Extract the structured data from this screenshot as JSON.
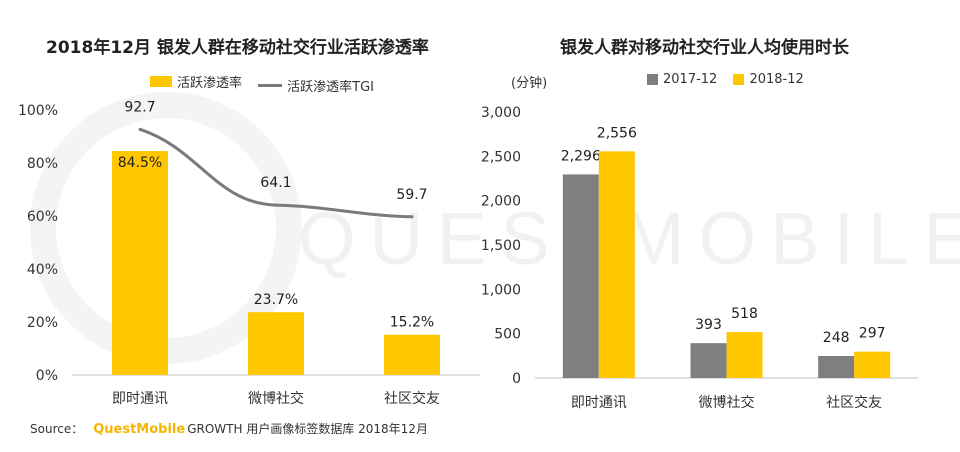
{
  "chart_data": [
    {
      "type": "bar",
      "title": "2018年12月 银发人群在移动社交行业活跃渗透率",
      "categories": [
        "即时通讯",
        "微博社交",
        "社区交友"
      ],
      "ylim": [
        0,
        100
      ],
      "yticks": [
        "0%",
        "20%",
        "40%",
        "60%",
        "80%",
        "100%"
      ],
      "series": [
        {
          "name": "活跃渗透率",
          "type": "bar",
          "values": [
            84.5,
            23.7,
            15.2
          ],
          "labels": [
            "84.5%",
            "23.7%",
            "15.2%"
          ],
          "color": "#FFC700"
        },
        {
          "name": "活跃渗透率TGI",
          "type": "line",
          "values": [
            92.7,
            64.1,
            59.7
          ],
          "labels": [
            "92.7",
            "64.1",
            "59.7"
          ],
          "color": "#7A7A7A"
        }
      ],
      "legend": "top"
    },
    {
      "type": "bar",
      "title": "银发人群对移动社交行业人均使用时长",
      "ylabel": "(分钟)",
      "categories": [
        "即时通讯",
        "微博社交",
        "社区交友"
      ],
      "ylim": [
        0,
        3000
      ],
      "yticks": [
        "0",
        "500",
        "1,000",
        "1,500",
        "2,000",
        "2,500",
        "3,000"
      ],
      "series": [
        {
          "name": "2017-12",
          "values": [
            2296,
            393,
            248
          ],
          "labels": [
            "2,296",
            "393",
            "248"
          ],
          "color": "#7F7F7F"
        },
        {
          "name": "2018-12",
          "values": [
            2556,
            518,
            297
          ],
          "labels": [
            "2,556",
            "518",
            "297"
          ],
          "color": "#FFC700"
        }
      ],
      "legend": "top"
    }
  ],
  "source": {
    "prefix": "Source：",
    "brand": "QuestMobile",
    "text": "GROWTH 用户画像标签数据库 2018年12月"
  },
  "watermark": "QUESTMOBILE"
}
